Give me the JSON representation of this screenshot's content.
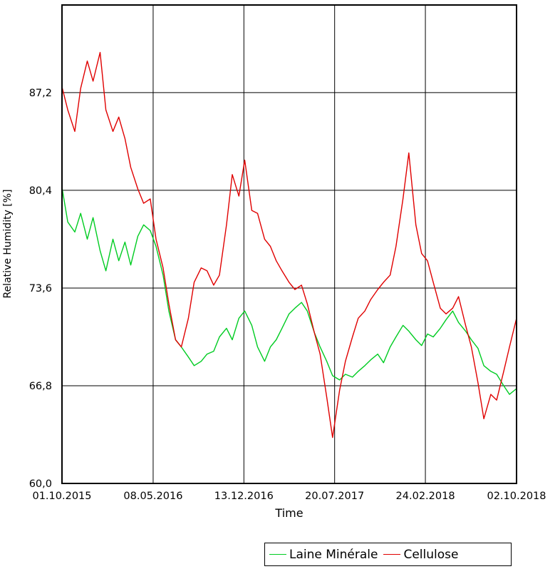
{
  "chart_data": {
    "type": "line",
    "xlabel": "Time",
    "ylabel": "Relative Humidity [%]",
    "x_ticks": [
      "01.10.2015",
      "08.05.2016",
      "13.12.2016",
      "20.07.2017",
      "24.02.2018",
      "02.10.2018"
    ],
    "y_ticks": [
      "60,0",
      "66,8",
      "73,6",
      "80,4",
      "87,2"
    ],
    "xlim": [
      "01.10.2015",
      "02.10.2018"
    ],
    "ylim": [
      60.0,
      93.3
    ],
    "grid": true,
    "legend_position": "bottom-right",
    "series": [
      {
        "name": "Laine Minérale",
        "color": "#00cc22",
        "x": [
          "01.10.2015",
          "15.10.2015",
          "01.11.2015",
          "15.11.2015",
          "01.12.2015",
          "15.12.2015",
          "01.01.2016",
          "15.01.2016",
          "01.02.2016",
          "15.02.2016",
          "01.03.2016",
          "15.03.2016",
          "01.04.2016",
          "15.04.2016",
          "01.05.2016",
          "15.05.2016",
          "01.06.2016",
          "15.06.2016",
          "01.07.2016",
          "15.07.2016",
          "01.08.2016",
          "15.08.2016",
          "01.09.2016",
          "15.09.2016",
          "01.10.2016",
          "15.10.2016",
          "01.11.2016",
          "15.11.2016",
          "01.12.2016",
          "15.12.2016",
          "01.01.2017",
          "15.01.2017",
          "01.02.2017",
          "15.02.2017",
          "01.03.2017",
          "15.03.2017",
          "01.04.2017",
          "15.04.2017",
          "01.05.2017",
          "15.05.2017",
          "01.06.2017",
          "15.06.2017",
          "01.07.2017",
          "15.07.2017",
          "01.08.2017",
          "15.08.2017",
          "01.09.2017",
          "15.09.2017",
          "01.10.2017",
          "15.10.2017",
          "01.11.2017",
          "15.11.2017",
          "01.12.2017",
          "15.12.2017",
          "01.01.2018",
          "15.01.2018",
          "01.02.2018",
          "15.02.2018",
          "01.03.2018",
          "15.03.2018",
          "01.04.2018",
          "15.04.2018",
          "01.05.2018",
          "15.05.2018",
          "01.06.2018",
          "15.06.2018",
          "01.07.2018",
          "15.07.2018",
          "01.08.2018",
          "15.08.2018",
          "01.09.2018",
          "15.09.2018",
          "02.10.2018"
        ],
        "y": [
          80.6,
          78.2,
          77.5,
          78.8,
          77.0,
          78.5,
          76.2,
          74.8,
          77.0,
          75.5,
          76.8,
          75.2,
          77.2,
          78.0,
          77.6,
          76.5,
          74.5,
          72.0,
          70.0,
          69.5,
          68.8,
          68.2,
          68.5,
          69.0,
          69.2,
          70.2,
          70.8,
          70.0,
          71.5,
          72.0,
          71.0,
          69.5,
          68.5,
          69.5,
          70.0,
          70.8,
          71.8,
          72.2,
          72.6,
          72.0,
          70.5,
          69.5,
          68.5,
          67.5,
          67.2,
          67.6,
          67.4,
          67.8,
          68.2,
          68.6,
          69.0,
          68.4,
          69.5,
          70.2,
          71.0,
          70.6,
          70.0,
          69.6,
          70.4,
          70.2,
          70.8,
          71.4,
          72.0,
          71.2,
          70.6,
          70.0,
          69.4,
          68.2,
          67.8,
          67.6,
          66.8,
          66.2,
          66.6
        ]
      },
      {
        "name": "Cellulose",
        "color": "#e00000",
        "x": [
          "01.10.2015",
          "15.10.2015",
          "01.11.2015",
          "15.11.2015",
          "01.12.2015",
          "15.12.2015",
          "01.01.2016",
          "15.01.2016",
          "01.02.2016",
          "15.02.2016",
          "01.03.2016",
          "15.03.2016",
          "01.04.2016",
          "15.04.2016",
          "01.05.2016",
          "15.05.2016",
          "01.06.2016",
          "15.06.2016",
          "01.07.2016",
          "15.07.2016",
          "01.08.2016",
          "15.08.2016",
          "01.09.2016",
          "15.09.2016",
          "01.10.2016",
          "15.10.2016",
          "01.11.2016",
          "15.11.2016",
          "01.12.2016",
          "15.12.2016",
          "01.01.2017",
          "15.01.2017",
          "01.02.2017",
          "15.02.2017",
          "01.03.2017",
          "15.03.2017",
          "01.04.2017",
          "15.04.2017",
          "01.05.2017",
          "15.05.2017",
          "01.06.2017",
          "15.06.2017",
          "01.07.2017",
          "15.07.2017",
          "01.08.2017",
          "15.08.2017",
          "01.09.2017",
          "15.09.2017",
          "01.10.2017",
          "15.10.2017",
          "01.11.2017",
          "15.11.2017",
          "01.12.2017",
          "15.12.2017",
          "01.01.2018",
          "15.01.2018",
          "01.02.2018",
          "15.02.2018",
          "01.03.2018",
          "15.03.2018",
          "01.04.2018",
          "15.04.2018",
          "01.05.2018",
          "15.05.2018",
          "01.06.2018",
          "15.06.2018",
          "01.07.2018",
          "15.07.2018",
          "01.08.2018",
          "15.08.2018",
          "01.09.2018",
          "15.09.2018",
          "02.10.2018"
        ],
        "y": [
          87.6,
          86.0,
          84.5,
          87.5,
          89.4,
          88.0,
          90.0,
          86.0,
          84.5,
          85.5,
          84.0,
          82.0,
          80.5,
          79.5,
          79.8,
          77.0,
          75.0,
          72.5,
          70.0,
          69.5,
          71.5,
          74.0,
          75.0,
          74.8,
          73.8,
          74.5,
          78.0,
          81.5,
          80.0,
          82.5,
          79.0,
          78.8,
          77.0,
          76.5,
          75.5,
          74.8,
          74.0,
          73.5,
          73.8,
          72.5,
          70.5,
          69.0,
          66.0,
          63.2,
          66.5,
          68.5,
          70.2,
          71.5,
          72.0,
          72.8,
          73.5,
          74.0,
          74.5,
          76.5,
          79.8,
          83.0,
          78.0,
          76.0,
          75.5,
          74.0,
          72.2,
          71.8,
          72.2,
          73.0,
          71.0,
          69.5,
          67.0,
          64.5,
          66.2,
          65.8,
          67.8,
          69.5,
          71.5
        ]
      }
    ]
  }
}
